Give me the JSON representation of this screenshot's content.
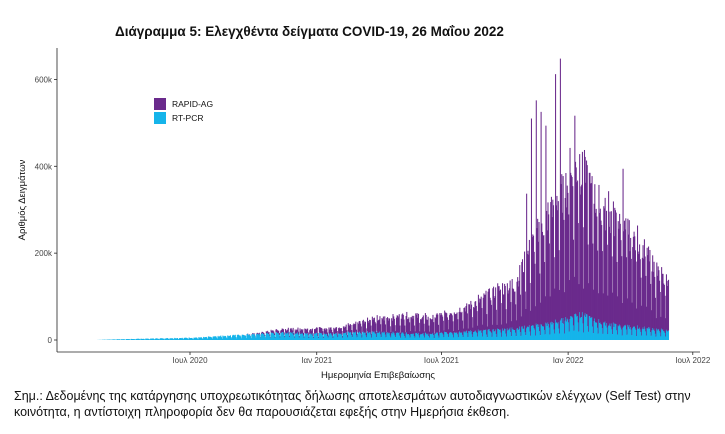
{
  "chart_data": {
    "type": "bar",
    "stacked": true,
    "title": "Διάγραμμα 5: Ελεγχθέντα δείγματα COVID-19, 26 Μαΐου 2022",
    "xlabel": "Ημερομηνία Επιβεβαίωσης",
    "ylabel": "Αριθμός Δειγμάτων",
    "ylim": [
      0,
      700000
    ],
    "y_ticks": [
      0,
      200000,
      400000,
      600000
    ],
    "y_tick_labels": [
      "0",
      "200k",
      "400k",
      "600k"
    ],
    "x_range": [
      "2020-02-01",
      "2022-05-26"
    ],
    "x_tick_labels": [
      "Ιουλ 2020",
      "Ιαν 2021",
      "Ιουλ 2021",
      "Ιαν 2022",
      "Ιουλ 2022"
    ],
    "x_ticks": [
      "2020-07-01",
      "2021-01-01",
      "2021-07-01",
      "2022-01-01",
      "2022-07-01"
    ],
    "legend_position": "top-left",
    "grid": false,
    "series": [
      {
        "name": "RAPID-AG",
        "color": "#6a2a8c"
      },
      {
        "name": "RT-PCR",
        "color": "#15b4ea"
      }
    ],
    "periods": [
      {
        "month": "2020-02",
        "rtpcr": 0,
        "rapid_ag": 0
      },
      {
        "month": "2020-03",
        "rtpcr": 1500,
        "rapid_ag": 0
      },
      {
        "month": "2020-04",
        "rtpcr": 2500,
        "rapid_ag": 0
      },
      {
        "month": "2020-05",
        "rtpcr": 3500,
        "rapid_ag": 0
      },
      {
        "month": "2020-06",
        "rtpcr": 4500,
        "rapid_ag": 0
      },
      {
        "month": "2020-07",
        "rtpcr": 5500,
        "rapid_ag": 0
      },
      {
        "month": "2020-08",
        "rtpcr": 9000,
        "rapid_ag": 0
      },
      {
        "month": "2020-09",
        "rtpcr": 12000,
        "rapid_ag": 0
      },
      {
        "month": "2020-10",
        "rtpcr": 14000,
        "rapid_ag": 3000
      },
      {
        "month": "2020-11",
        "rtpcr": 17000,
        "rapid_ag": 8000
      },
      {
        "month": "2020-12",
        "rtpcr": 15000,
        "rapid_ag": 10000
      },
      {
        "month": "2021-01",
        "rtpcr": 14000,
        "rapid_ag": 12000
      },
      {
        "month": "2021-02",
        "rtpcr": 17000,
        "rapid_ag": 16000
      },
      {
        "month": "2021-03",
        "rtpcr": 18000,
        "rapid_ag": 28000
      },
      {
        "month": "2021-04",
        "rtpcr": 17000,
        "rapid_ag": 34000
      },
      {
        "month": "2021-05",
        "rtpcr": 15000,
        "rapid_ag": 42000
      },
      {
        "month": "2021-06",
        "rtpcr": 14000,
        "rapid_ag": 36000
      },
      {
        "month": "2021-07",
        "rtpcr": 18000,
        "rapid_ag": 45000
      },
      {
        "month": "2021-08",
        "rtpcr": 20000,
        "rapid_ag": 62000
      },
      {
        "month": "2021-09",
        "rtpcr": 22000,
        "rapid_ag": 88000
      },
      {
        "month": "2021-10",
        "rtpcr": 26000,
        "rapid_ag": 100000
      },
      {
        "month": "2021-11",
        "rtpcr": 32000,
        "rapid_ag": 210000
      },
      {
        "month": "2021-12",
        "rtpcr": 40000,
        "rapid_ag": 280000
      },
      {
        "month": "2022-01",
        "rtpcr": 60000,
        "rapid_ag": 340000
      },
      {
        "month": "2022-02",
        "rtpcr": 40000,
        "rapid_ag": 260000
      },
      {
        "month": "2022-03",
        "rtpcr": 32000,
        "rapid_ag": 230000
      },
      {
        "month": "2022-04",
        "rtpcr": 28000,
        "rapid_ag": 190000
      },
      {
        "month": "2022-05",
        "rtpcr": 22000,
        "rapid_ag": 120000
      }
    ],
    "peaks": [
      {
        "month": "2021-11",
        "total": 560000
      },
      {
        "month": "2021-12",
        "total": 665000
      },
      {
        "month": "2022-01",
        "total": 650000
      },
      {
        "month": "2022-02",
        "total": 560000
      },
      {
        "month": "2022-03",
        "total": 420000
      },
      {
        "month": "2022-04",
        "total": 320000
      },
      {
        "month": "2022-05",
        "total": 160000
      }
    ]
  },
  "note": "Σημ.: Δεδομένης της κατάργησης υποχρεωτικότητας δήλωσης αποτελεσμάτων αυτοδιαγνωστικών ελέγχων (Self Test) στην κοινότητα, η αντίστοιχη πληροφορία δεν θα παρουσιάζεται εφεξής στην Ημερήσια έκθεση."
}
